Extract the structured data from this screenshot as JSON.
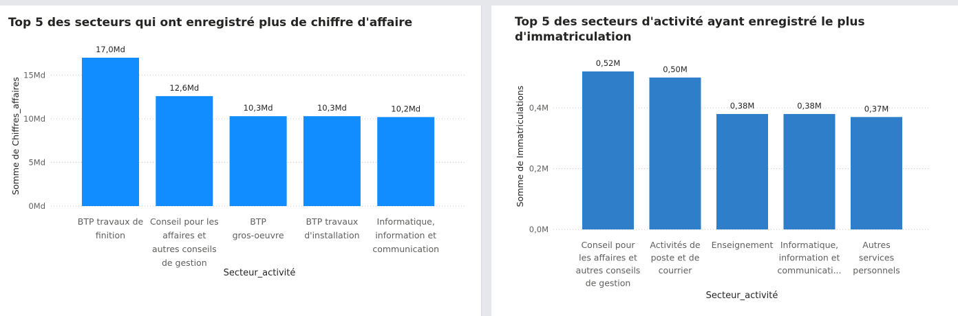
{
  "chart_data": [
    {
      "type": "bar",
      "title": "Top 5 des secteurs qui ont enregistré plus de chiffre d'affaire",
      "xlabel": "Secteur_activité",
      "ylabel": "Somme de Chiffres_affaires",
      "categories": [
        [
          "BTP travaux de",
          "finition"
        ],
        [
          "Conseil pour les",
          "affaires et",
          "autres conseils",
          "de gestion"
        ],
        [
          "BTP",
          "gros-oeuvre"
        ],
        [
          "BTP travaux",
          "d'installation"
        ],
        [
          "Informatique,",
          "information et",
          "communication"
        ]
      ],
      "values": [
        17.0,
        12.6,
        10.3,
        10.3,
        10.2
      ],
      "value_labels": [
        "17,0Md",
        "12,6Md",
        "10,3Md",
        "10,3Md",
        "10,2Md"
      ],
      "value_unit": "Md",
      "yticks": [
        0,
        5,
        10,
        15
      ],
      "ytick_labels": [
        "0Md",
        "5Md",
        "10Md",
        "15Md"
      ],
      "ylim": [
        0,
        17.0
      ],
      "grid": true,
      "bar_color": "#118dff"
    },
    {
      "type": "bar",
      "title": "Top 5 des secteurs d'activité ayant enregistré le plus d'immatriculation",
      "xlabel": "Secteur_activité",
      "ylabel": "Somme de Immatriculations",
      "categories": [
        [
          "Conseil pour",
          "les affaires et",
          "autres conseils",
          "de gestion"
        ],
        [
          "Activités de",
          "poste et de",
          "courrier"
        ],
        [
          "Enseignement"
        ],
        [
          "Informatique,",
          "information et",
          "communicati..."
        ],
        [
          "Autres",
          "services",
          "personnels"
        ]
      ],
      "values": [
        0.52,
        0.5,
        0.38,
        0.38,
        0.37
      ],
      "value_labels": [
        "0,52M",
        "0,50M",
        "0,38M",
        "0,38M",
        "0,37M"
      ],
      "value_unit": "M",
      "yticks": [
        0,
        0.2,
        0.4
      ],
      "ytick_labels": [
        "0,0M",
        "0,2M",
        "0,4M"
      ],
      "ylim": [
        0,
        0.52
      ],
      "grid": true,
      "bar_color": "#2e7ec9"
    }
  ]
}
